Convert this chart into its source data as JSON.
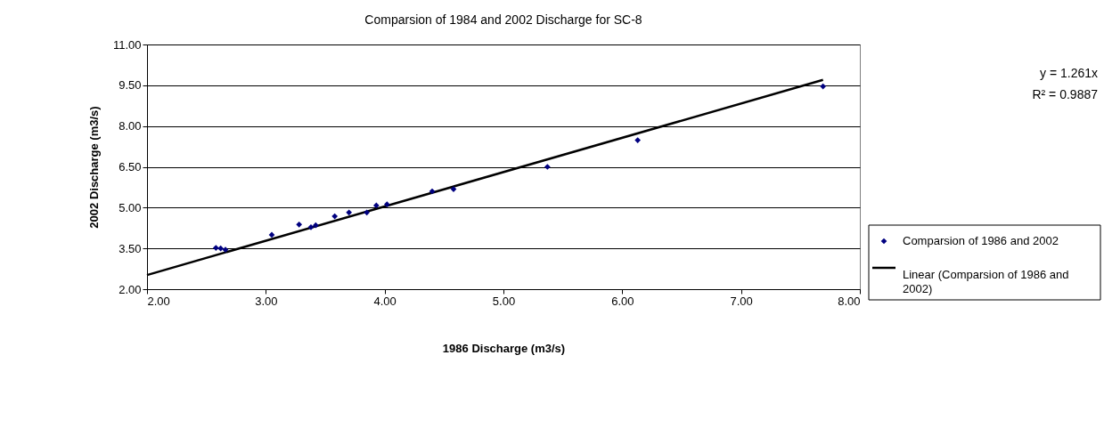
{
  "chart_data": {
    "type": "scatter",
    "title": "Comparsion of 1984 and 2002 Discharge for SC-8",
    "xlabel": "1986 Discharge (m3/s)",
    "ylabel": "2002 Discharge (m3/s)",
    "annotations": [
      "y = 1.261x",
      "R² = 0.9887"
    ],
    "xlim": [
      2,
      8
    ],
    "ylim": [
      2,
      11
    ],
    "xticks": [
      {
        "value": 2,
        "label": "2.00"
      },
      {
        "value": 3,
        "label": "3.00"
      },
      {
        "value": 4,
        "label": "4.00"
      },
      {
        "value": 5,
        "label": "5.00"
      },
      {
        "value": 6,
        "label": "6.00"
      },
      {
        "value": 7,
        "label": "7.00"
      },
      {
        "value": 8,
        "label": "8.00"
      }
    ],
    "yticks": [
      {
        "value": 2,
        "label": "2.00"
      },
      {
        "value": 3.5,
        "label": "3.50"
      },
      {
        "value": 5,
        "label": "5.00"
      },
      {
        "value": 6.5,
        "label": "6.50"
      },
      {
        "value": 8,
        "label": "8.00"
      },
      {
        "value": 9.5,
        "label": "9.50"
      },
      {
        "value": 11,
        "label": "11.00"
      }
    ],
    "grid": "y",
    "legend": "right",
    "marker": "diamond",
    "series": [
      {
        "name": "Comparsion of 1986 and 2002",
        "color": "#000080",
        "x": [
          2.58,
          2.62,
          2.66,
          3.05,
          3.28,
          3.38,
          3.42,
          3.58,
          3.7,
          3.85,
          3.93,
          4.02,
          4.4,
          4.58,
          5.37,
          6.13,
          7.69
        ],
        "values": [
          3.52,
          3.5,
          3.45,
          4.0,
          4.38,
          4.28,
          4.35,
          4.68,
          4.82,
          4.82,
          5.08,
          5.12,
          5.6,
          5.68,
          6.5,
          7.48,
          9.46
        ]
      },
      {
        "name": "Linear (Comparsion of 1986 and 2002)",
        "type": "line",
        "color": "#000000",
        "line_style": "solid",
        "marker": "none",
        "x": [
          2,
          7.69
        ],
        "values": [
          2.52,
          9.7
        ]
      }
    ]
  }
}
